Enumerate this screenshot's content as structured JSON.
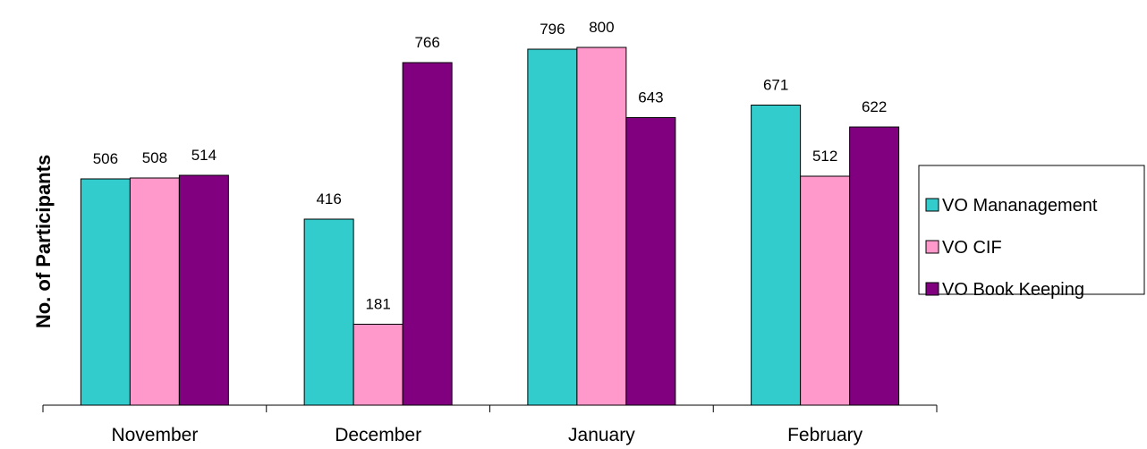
{
  "chart_data": {
    "type": "bar",
    "title": "",
    "xlabel": "",
    "ylabel": "No. of Participants",
    "categories": [
      "November",
      "December",
      "January",
      "February"
    ],
    "series": [
      {
        "name": "VO Mananagement",
        "color": "#33CCCC",
        "values": [
          506,
          416,
          796,
          671
        ]
      },
      {
        "name": "VO CIF",
        "color": "#FF99CC",
        "values": [
          508,
          181,
          800,
          512
        ]
      },
      {
        "name": "VO Book Keeping",
        "color": "#800080",
        "values": [
          514,
          766,
          643,
          622
        ]
      }
    ],
    "ylim": [
      0,
      850
    ],
    "grid": false,
    "legend": "right",
    "data_labels": true
  }
}
